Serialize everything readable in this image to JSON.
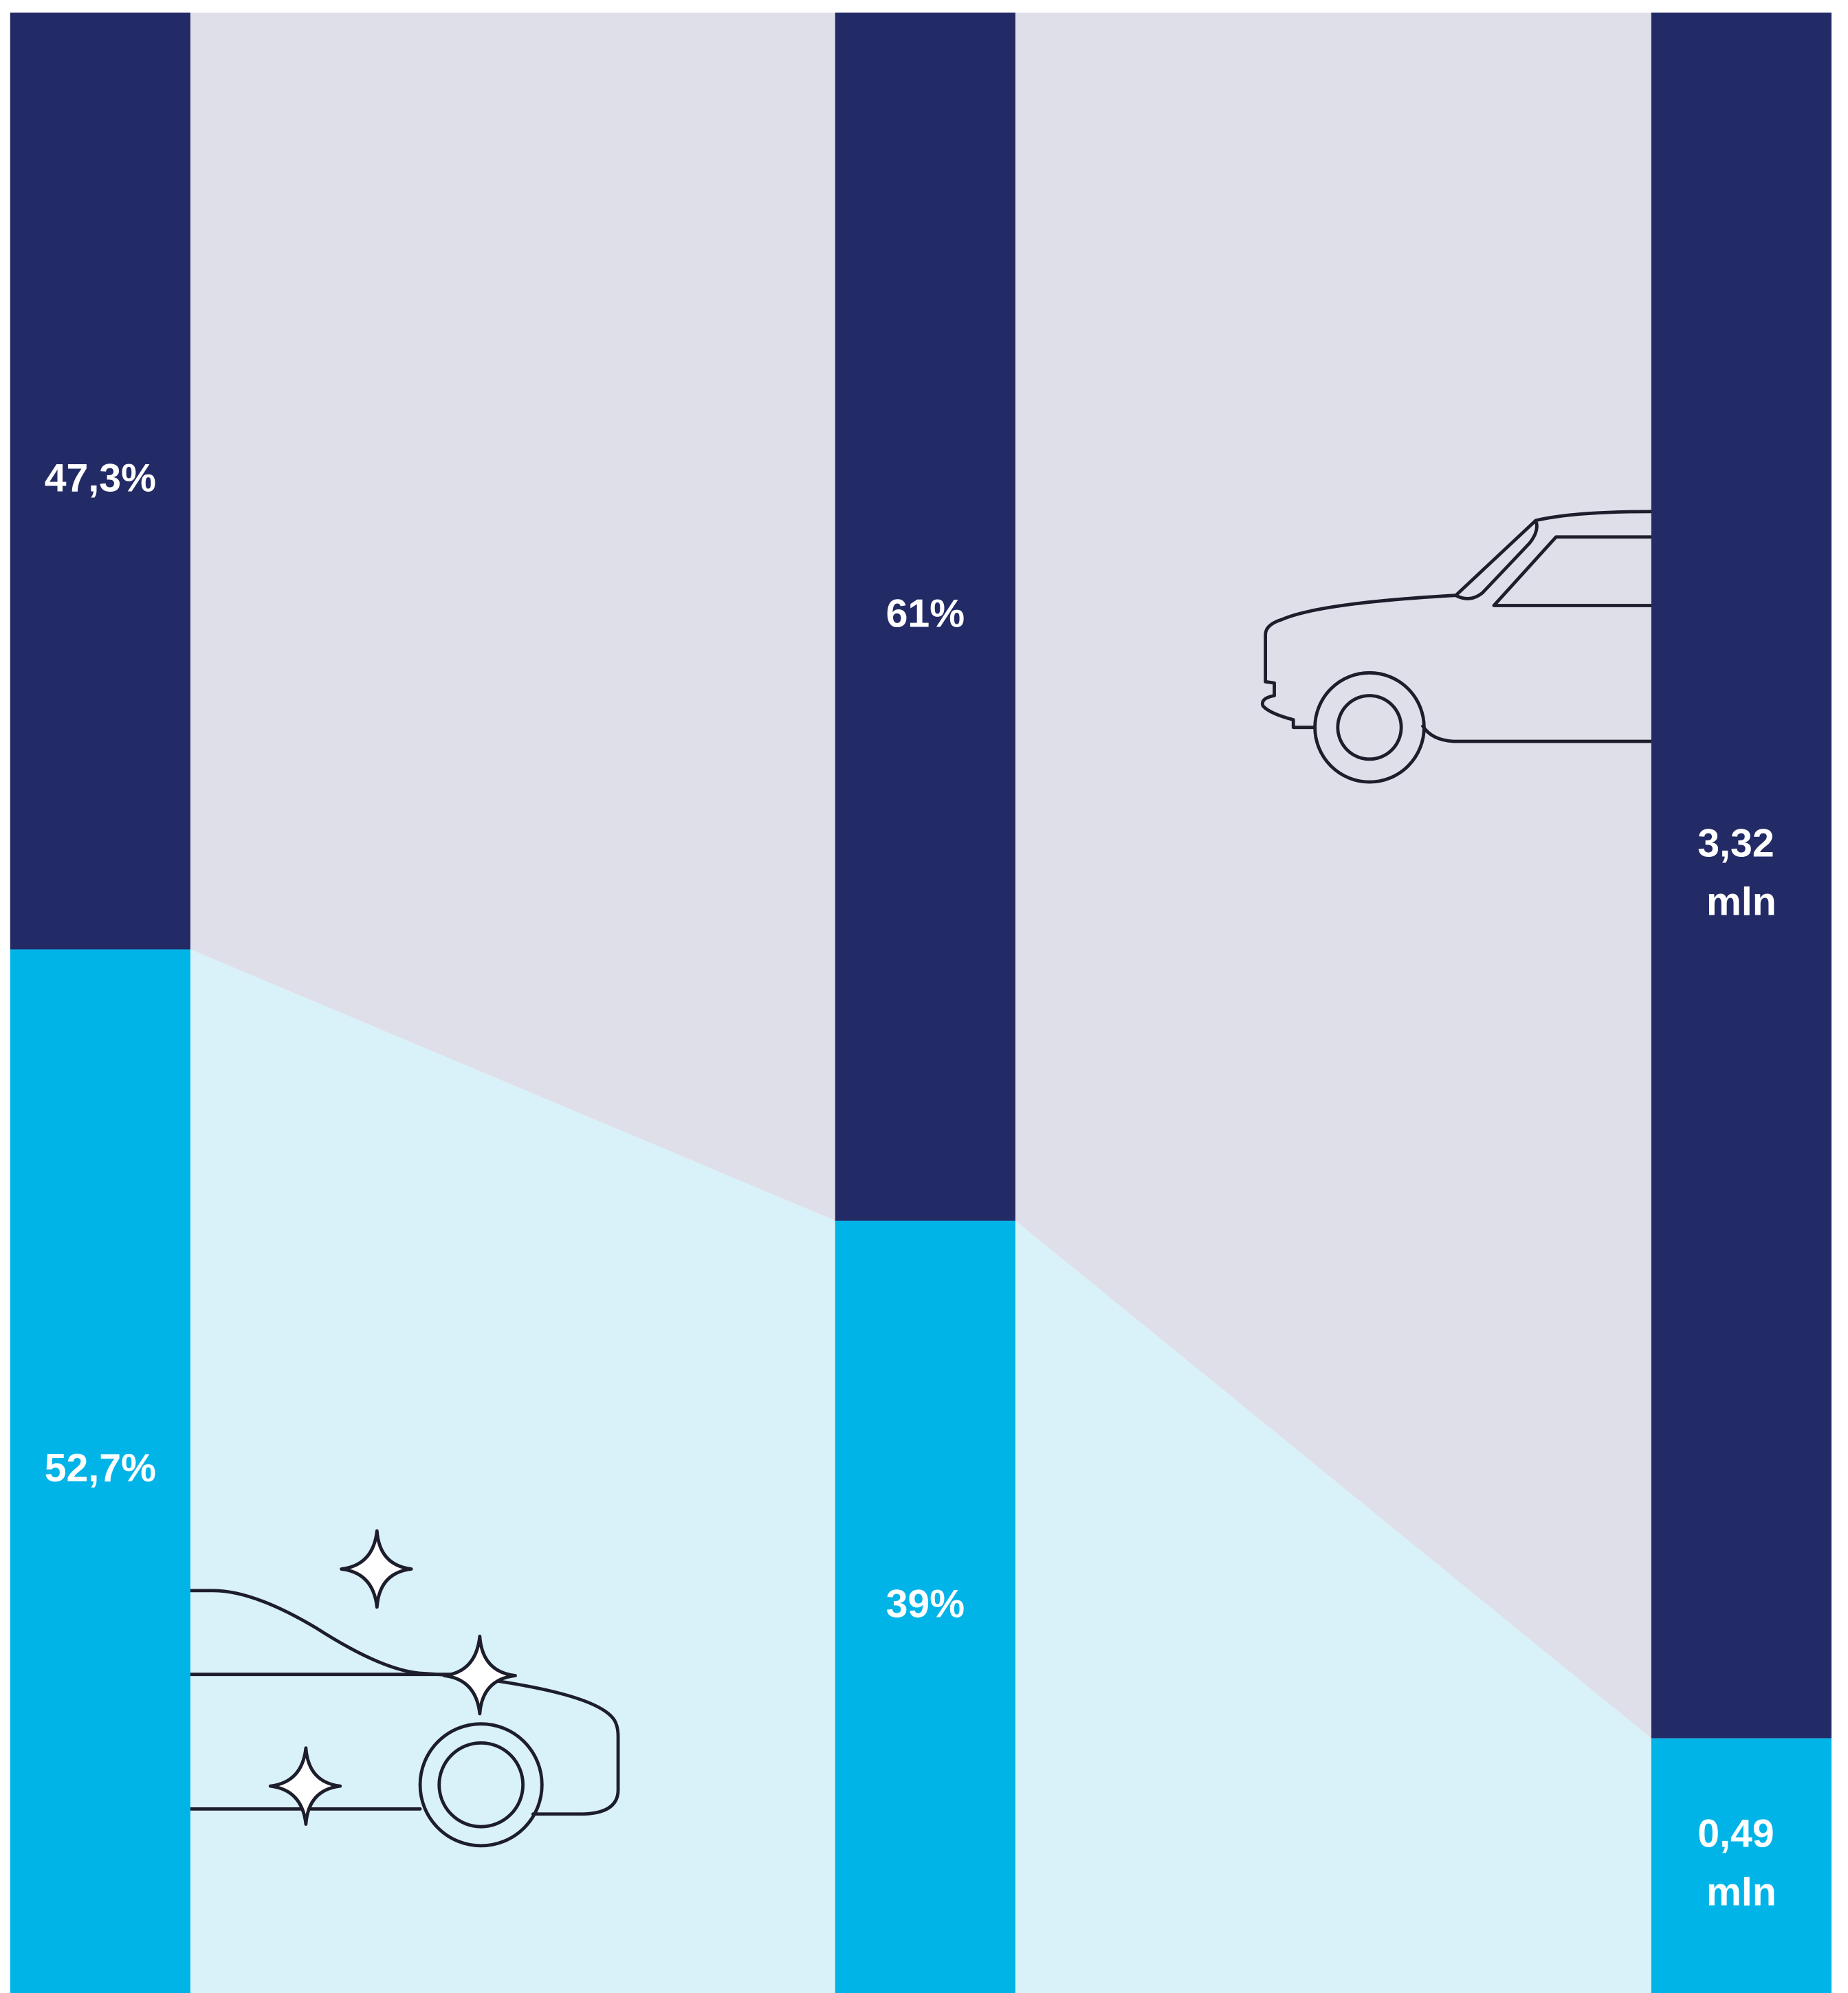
{
  "chart_data": {
    "type": "bar",
    "stacked": true,
    "normalized": true,
    "categories": [
      null,
      null,
      null
    ],
    "series": [
      {
        "color": "#232b66",
        "values": [
          47.3,
          61,
          3.32
        ],
        "value_labels": [
          "47,3%",
          "61%",
          "3,32 mln"
        ]
      },
      {
        "color": "#00b4e8",
        "values": [
          52.7,
          39,
          0.49
        ],
        "value_labels": [
          "52,7%",
          "39%",
          "0,49 mln"
        ]
      }
    ],
    "area_colors": [
      "#dfdfe9",
      "#d9f1f8"
    ]
  }
}
